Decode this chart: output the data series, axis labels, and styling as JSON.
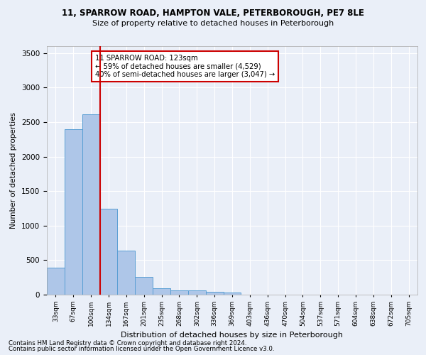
{
  "title_line1": "11, SPARROW ROAD, HAMPTON VALE, PETERBOROUGH, PE7 8LE",
  "title_line2": "Size of property relative to detached houses in Peterborough",
  "xlabel": "Distribution of detached houses by size in Peterborough",
  "ylabel": "Number of detached properties",
  "bar_labels": [
    "33sqm",
    "67sqm",
    "100sqm",
    "134sqm",
    "167sqm",
    "201sqm",
    "235sqm",
    "268sqm",
    "302sqm",
    "336sqm",
    "369sqm",
    "403sqm",
    "436sqm",
    "470sqm",
    "504sqm",
    "537sqm",
    "571sqm",
    "604sqm",
    "638sqm",
    "672sqm",
    "705sqm"
  ],
  "bar_values": [
    390,
    2400,
    2610,
    1240,
    640,
    255,
    95,
    57,
    57,
    40,
    30,
    0,
    0,
    0,
    0,
    0,
    0,
    0,
    0,
    0,
    0
  ],
  "bar_color": "#aec6e8",
  "bar_edge_color": "#5a9fd4",
  "vline_x": 2.5,
  "vline_color": "#cc0000",
  "ylim": [
    0,
    3600
  ],
  "yticks": [
    0,
    500,
    1000,
    1500,
    2000,
    2500,
    3000,
    3500
  ],
  "annotation_text": "11 SPARROW ROAD: 123sqm\n← 59% of detached houses are smaller (4,529)\n40% of semi-detached houses are larger (3,047) →",
  "annotation_box_color": "#ffffff",
  "annotation_box_edge_color": "#cc0000",
  "footnote1": "Contains HM Land Registry data © Crown copyright and database right 2024.",
  "footnote2": "Contains public sector information licensed under the Open Government Licence v3.0.",
  "background_color": "#eaeff8",
  "grid_color": "#ffffff"
}
